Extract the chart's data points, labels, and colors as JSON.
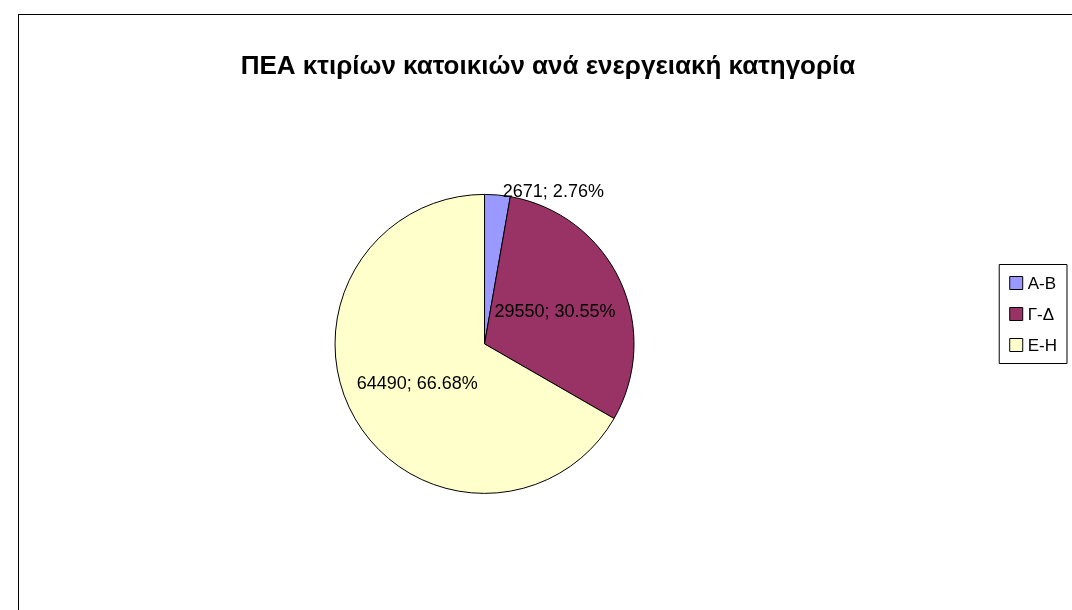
{
  "chart_data": {
    "type": "pie",
    "title": "ΠΕΑ κτιρίων κατοικιών ανά ενεργειακή κατηγορία",
    "categories": [
      "Α-Β",
      "Γ-Δ",
      "Ε-Η"
    ],
    "values": [
      2671,
      29550,
      64490
    ],
    "value_labels": [
      "2671; 2.76%",
      "29550; 30.55%",
      "64490; 66.68%"
    ],
    "colors": [
      "#9999ff",
      "#993366",
      "#ffffcc"
    ],
    "legend": "right"
  }
}
